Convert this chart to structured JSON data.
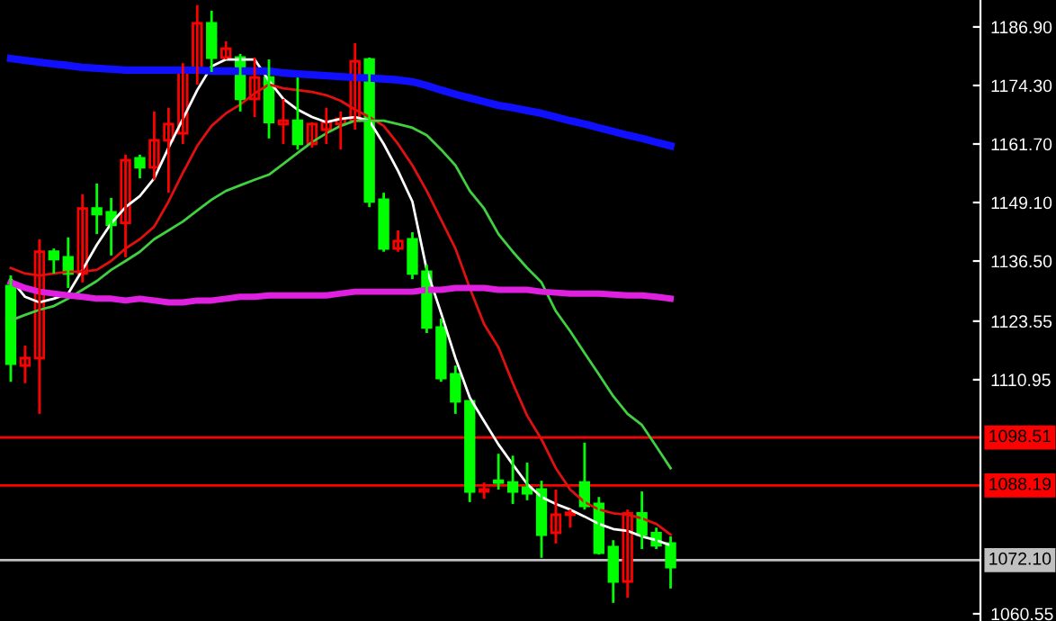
{
  "chart_data": {
    "type": "candlestick",
    "categories": [
      null,
      null,
      null,
      null,
      null,
      null,
      null,
      null,
      null,
      null,
      null,
      null,
      null,
      null,
      null,
      null,
      null,
      null,
      null,
      null,
      null,
      null,
      null,
      null,
      null,
      null,
      null,
      null,
      null,
      null,
      null,
      null,
      null,
      null,
      null,
      null,
      null,
      null,
      null,
      null,
      null,
      null,
      null,
      null,
      null,
      null,
      null
    ],
    "ohlc": [
      [
        1131.1,
        1133.4,
        1110.5,
        1114.4
      ],
      [
        1114.0,
        1118.3,
        1110.2,
        1115.6
      ],
      [
        1115.6,
        1141.2,
        1103.6,
        1138.5
      ],
      [
        1138.5,
        1139.2,
        1133.8,
        1136.9
      ],
      [
        1137.3,
        1141.6,
        1130.7,
        1133.8
      ],
      [
        1133.8,
        1150.9,
        1131.9,
        1147.8
      ],
      [
        1147.8,
        1153.2,
        1142.3,
        1146.6
      ],
      [
        1147.0,
        1150.1,
        1137.7,
        1144.3
      ],
      [
        1144.7,
        1159.4,
        1137.3,
        1158.2
      ],
      [
        1158.6,
        1159.4,
        1154.3,
        1156.7
      ],
      [
        1156.7,
        1168.7,
        1154.0,
        1162.5
      ],
      [
        1162.5,
        1169.5,
        1151.2,
        1166.0
      ],
      [
        1164.0,
        1179.1,
        1161.7,
        1177.2
      ],
      [
        1177.2,
        1191.6,
        1174.5,
        1187.7
      ],
      [
        1187.7,
        1190.4,
        1177.2,
        1180.3
      ],
      [
        1180.3,
        1183.8,
        1179.9,
        1182.2
      ],
      [
        1180.3,
        1181.1,
        1168.7,
        1171.4
      ],
      [
        1171.4,
        1180.3,
        1167.5,
        1176.0
      ],
      [
        1176.0,
        1179.9,
        1162.9,
        1166.4
      ],
      [
        1166.0,
        1171.4,
        1161.7,
        1166.7
      ],
      [
        1166.7,
        1176.0,
        1160.5,
        1161.7
      ],
      [
        1161.7,
        1166.4,
        1160.9,
        1166.0
      ],
      [
        1164.8,
        1169.5,
        1161.7,
        1166.4
      ],
      [
        1166.0,
        1168.7,
        1160.5,
        1167.1
      ],
      [
        1166.7,
        1183.4,
        1164.8,
        1179.5
      ],
      [
        1179.9,
        1180.3,
        1148.1,
        1149.3
      ],
      [
        1149.7,
        1151.2,
        1138.5,
        1139.2
      ],
      [
        1139.2,
        1143.1,
        1138.5,
        1140.8
      ],
      [
        1141.2,
        1142.7,
        1132.6,
        1133.8
      ],
      [
        1134.2,
        1135.7,
        1121.0,
        1122.2
      ],
      [
        1122.2,
        1124.1,
        1110.5,
        1111.3
      ],
      [
        1112.1,
        1114.0,
        1103.6,
        1106.3
      ],
      [
        1106.3,
        1106.3,
        1084.6,
        1086.9
      ],
      [
        1086.9,
        1088.8,
        1085.3,
        1087.3
      ],
      [
        1089.2,
        1095.0,
        1087.3,
        1088.8
      ],
      [
        1088.8,
        1094.6,
        1084.2,
        1086.9
      ],
      [
        1087.7,
        1093.1,
        1085.0,
        1086.5
      ],
      [
        1087.3,
        1089.2,
        1072.6,
        1077.6
      ],
      [
        1078.0,
        1087.3,
        1075.7,
        1081.9
      ],
      [
        1081.9,
        1083.0,
        1079.1,
        1082.3
      ],
      [
        1088.8,
        1097.4,
        1083.0,
        1083.8
      ],
      [
        1084.2,
        1085.7,
        1073.3,
        1073.7
      ],
      [
        1074.9,
        1076.4,
        1062.9,
        1067.5
      ],
      [
        1067.5,
        1083.0,
        1064.0,
        1082.2
      ],
      [
        1082.2,
        1086.9,
        1074.5,
        1077.6
      ],
      [
        1077.9,
        1079.1,
        1074.5,
        1075.3
      ],
      [
        1075.7,
        1077.2,
        1066.0,
        1070.6
      ]
    ],
    "colors": [
      "#00ff00",
      "#ff0000",
      "#ff0000",
      "#00ff00",
      "#00ff00",
      "#ff0000",
      "#00ff00",
      "#00ff00",
      "#ff0000",
      "#00ff00",
      "#ff0000",
      "#ff0000",
      "#ff0000",
      "#ff0000",
      "#00ff00",
      "#ff0000",
      "#00ff00",
      "#ff0000",
      "#00ff00",
      "#ff0000",
      "#00ff00",
      "#ff0000",
      "#ff0000",
      "#ff0000",
      "#ff0000",
      "#00ff00",
      "#00ff00",
      "#ff0000",
      "#00ff00",
      "#00ff00",
      "#00ff00",
      "#00ff00",
      "#00ff00",
      "#ff0000",
      "#00ff00",
      "#00ff00",
      "#00ff00",
      "#00ff00",
      "#ff0000",
      "#ff0000",
      "#00ff00",
      "#00ff00",
      "#00ff00",
      "#ff0000",
      "#00ff00",
      "#00ff00",
      "#00ff00"
    ],
    "series": [
      {
        "type": "line",
        "color": "#ffffff",
        "values": [
          1132.6,
          1128.8,
          1127.6,
          1128.4,
          1129.5,
          1134.6,
          1140.0,
          1144.6,
          1148.1,
          1150.5,
          1154.3,
          1160.9,
          1167.1,
          1173.3,
          1178.4,
          1179.9,
          1179.9,
          1179.9,
          1175.3,
          1171.4,
          1169.1,
          1167.5,
          1166.4,
          1167.1,
          1167.5,
          1166.7,
          1161.7,
          1155.9,
          1149.3,
          1134.6,
          1125.3,
          1115.6,
          1107.1,
          1102.0,
          1097.0,
          1092.7,
          1088.5,
          1085.7,
          1084.2,
          1083.0,
          1081.5,
          1079.9,
          1078.8,
          1078.4,
          1077.2,
          1076.4,
          1075.3
        ]
      },
      {
        "type": "line",
        "color": "#e01010",
        "values": [
          1135.0,
          1133.8,
          1133.4,
          1133.8,
          1134.2,
          1134.2,
          1134.6,
          1136.5,
          1139.2,
          1141.2,
          1143.9,
          1149.3,
          1155.5,
          1161.3,
          1165.6,
          1168.3,
          1170.2,
          1172.6,
          1174.5,
          1173.7,
          1173.3,
          1172.9,
          1172.2,
          1171.0,
          1169.1,
          1167.5,
          1165.6,
          1161.7,
          1157.1,
          1151.6,
          1145.4,
          1139.2,
          1130.7,
          1122.9,
          1117.9,
          1110.2,
          1103.2,
          1098.1,
          1091.9,
          1087.3,
          1084.6,
          1083.0,
          1082.2,
          1081.9,
          1081.1,
          1079.9,
          1077.6
        ]
      },
      {
        "type": "line",
        "color": "#40d040",
        "values": [
          1123.7,
          1124.9,
          1126.0,
          1126.8,
          1128.4,
          1130.3,
          1132.2,
          1134.6,
          1136.5,
          1138.5,
          1141.2,
          1143.1,
          1145.0,
          1147.4,
          1149.7,
          1151.6,
          1152.8,
          1154.0,
          1155.1,
          1157.4,
          1159.8,
          1162.1,
          1164.0,
          1165.6,
          1166.7,
          1166.7,
          1166.7,
          1166.0,
          1165.2,
          1163.6,
          1160.5,
          1157.1,
          1151.6,
          1147.8,
          1142.3,
          1138.5,
          1135.0,
          1131.9,
          1125.7,
          1121.4,
          1116.7,
          1112.1,
          1107.4,
          1103.6,
          1101.2,
          1096.6,
          1091.9
        ]
      },
      {
        "type": "line",
        "color": "#1010ff",
        "values": [
          1180.1,
          1179.7,
          1179.3,
          1178.9,
          1178.6,
          1178.2,
          1178.0,
          1177.8,
          1177.6,
          1177.6,
          1177.6,
          1177.6,
          1177.6,
          1177.6,
          1177.4,
          1177.4,
          1177.4,
          1177.4,
          1177.4,
          1177.0,
          1176.8,
          1176.6,
          1176.4,
          1176.2,
          1176.0,
          1175.9,
          1175.7,
          1175.5,
          1175.1,
          1174.3,
          1173.3,
          1172.4,
          1171.6,
          1170.8,
          1170.0,
          1169.5,
          1168.9,
          1168.3,
          1167.5,
          1166.7,
          1166.0,
          1165.2,
          1164.4,
          1163.6,
          1162.9,
          1162.1,
          1161.3
        ]
      },
      {
        "type": "line",
        "color": "#e020e0",
        "values": [
          1131.9,
          1130.7,
          1129.9,
          1129.5,
          1129.1,
          1128.8,
          1128.4,
          1128.4,
          1128.0,
          1128.4,
          1128.0,
          1127.6,
          1127.6,
          1128.0,
          1128.0,
          1128.4,
          1128.8,
          1128.8,
          1129.1,
          1129.1,
          1129.1,
          1129.1,
          1129.1,
          1129.5,
          1129.9,
          1129.9,
          1129.9,
          1129.9,
          1129.9,
          1130.3,
          1130.3,
          1130.7,
          1130.7,
          1130.7,
          1130.3,
          1130.3,
          1130.3,
          1129.9,
          1129.7,
          1129.5,
          1129.5,
          1129.5,
          1129.3,
          1129.1,
          1129.1,
          1128.8,
          1128.4
        ]
      }
    ],
    "ylim": [
      1059.0,
      1192.7
    ],
    "yticks": [
      {
        "value": 1186.9,
        "label": "1186.90"
      },
      {
        "value": 1174.3,
        "label": "1174.30"
      },
      {
        "value": 1161.7,
        "label": "1161.70"
      },
      {
        "value": 1149.1,
        "label": "1149.10"
      },
      {
        "value": 1136.5,
        "label": "1136.50"
      },
      {
        "value": 1123.55,
        "label": "1123.55"
      },
      {
        "value": 1110.95,
        "label": "1110.95"
      },
      {
        "value": 1060.55,
        "label": "1060.55"
      }
    ],
    "ref_lines": [
      {
        "axis": "y",
        "value": 1098.51,
        "label": "1098.51",
        "color": "#ff0000"
      },
      {
        "axis": "y",
        "value": 1088.19,
        "label": "1088.19",
        "color": "#ff0000"
      },
      {
        "axis": "y",
        "value": 1072.1,
        "label": "1072.10",
        "color": "#c0c0c0"
      }
    ],
    "grid": false,
    "legend": false,
    "tick_labels": "y"
  }
}
